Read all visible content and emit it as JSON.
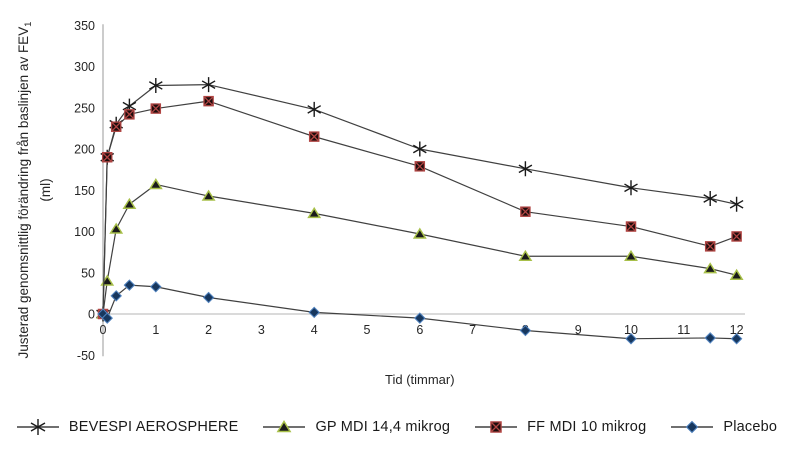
{
  "chart_data": {
    "type": "line",
    "title": "",
    "xlabel": "Tid (timmar)",
    "ylabel_main": "Justerad genomsnittlig förändring från baslinjen av FEV",
    "ylabel_subscript": "1",
    "ylabel_unit": "(ml)",
    "x_hours": [
      0,
      0.08,
      0.25,
      0.5,
      1,
      2,
      4,
      6,
      8,
      10,
      11.5,
      12
    ],
    "x_ticks": [
      0,
      1,
      2,
      3,
      4,
      5,
      6,
      7,
      8,
      9,
      10,
      11,
      12
    ],
    "y_ticks": [
      350,
      300,
      250,
      200,
      150,
      100,
      50,
      0,
      -50
    ],
    "xlim": [
      0,
      12.3
    ],
    "ylim": [
      -50,
      350
    ],
    "grid": "zero-line-only",
    "legend_position": "bottom",
    "series": [
      {
        "name": "BEVESPI AEROSPHERE",
        "marker": "asterisk",
        "marker_color": "#1a1a1a",
        "marker_fill": "none",
        "values": [
          0,
          190,
          230,
          252,
          277,
          278,
          248,
          200,
          176,
          153,
          140,
          133
        ]
      },
      {
        "name": "GP MDI 14,4 mikrog",
        "marker": "triangle",
        "marker_color": "#a8c04a",
        "marker_fill": "#1a1a1a",
        "values": [
          0,
          40,
          103,
          133,
          157,
          143,
          122,
          97,
          70,
          70,
          55,
          47
        ]
      },
      {
        "name": "FF MDI 10 mikrog",
        "marker": "square-x",
        "marker_color": "#b04543",
        "marker_fill": "#1d0d0d",
        "values": [
          0,
          190,
          227,
          242,
          249,
          258,
          215,
          179,
          124,
          106,
          82,
          94
        ]
      },
      {
        "name": "Placebo",
        "marker": "diamond",
        "marker_color": "#4f81bd",
        "marker_fill": "#17375e",
        "values": [
          0,
          -5,
          22,
          35,
          33,
          20,
          2,
          -5,
          -20,
          -30,
          -29,
          -30
        ]
      }
    ],
    "line_color": "#404040",
    "axis_color": "#9a9a9a",
    "zero_line_color": "#c3c3c3",
    "text_color": "#262626"
  }
}
